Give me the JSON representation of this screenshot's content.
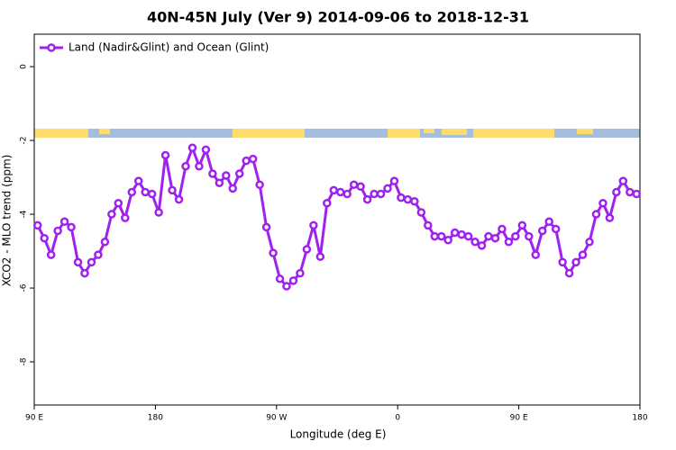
{
  "chart_data": {
    "type": "line",
    "title": "40N-45N July (Ver 9)   2014-09-06 to 2018-12-31",
    "x_label": "Longitude (deg E)",
    "y_label": "XCO2 - MLO trend (ppm)",
    "x": [
      92.5,
      97.5,
      102.5,
      107.5,
      112.5,
      117.5,
      122.5,
      127.5,
      132.5,
      137.5,
      142.5,
      147.5,
      152.5,
      157.5,
      162.5,
      167.5,
      172.5,
      177.5,
      182.5,
      187.5,
      192.5,
      197.5,
      202.5,
      207.5,
      212.5,
      217.5,
      222.5,
      227.5,
      232.5,
      237.5,
      242.5,
      247.5,
      252.5,
      257.5,
      262.5,
      267.5,
      272.5,
      277.5,
      282.5,
      287.5,
      292.5,
      297.5,
      302.5,
      307.5,
      312.5,
      317.5,
      322.5,
      327.5,
      332.5,
      337.5,
      342.5,
      347.5,
      352.5,
      357.5,
      362.5,
      367.5,
      372.5,
      377.5,
      382.5,
      387.5,
      392.5,
      397.5,
      402.5,
      407.5,
      412.5,
      417.5,
      422.5,
      427.5,
      432.5,
      437.5,
      442.5,
      447.5,
      452.5,
      457.5,
      462.5,
      467.5,
      472.5,
      477.5,
      482.5,
      487.5,
      492.5,
      497.5,
      502.5,
      507.5,
      512.5,
      517.5,
      522.5,
      527.5,
      532.5,
      537.5
    ],
    "series": [
      {
        "name": "Land (Nadir&Glint) and Ocean (Glint)",
        "color": "#a020f0",
        "values": [
          -4.3,
          -4.65,
          -5.1,
          -4.45,
          -4.2,
          -4.35,
          -5.3,
          -5.6,
          -5.3,
          -5.1,
          -4.75,
          -4.0,
          -3.7,
          -4.1,
          -3.4,
          -3.1,
          -3.4,
          -3.45,
          -3.95,
          -2.4,
          -3.35,
          -3.6,
          -2.7,
          -2.2,
          -2.7,
          -2.25,
          -2.9,
          -3.15,
          -2.95,
          -3.3,
          -2.9,
          -2.55,
          -2.5,
          -3.2,
          -4.35,
          -5.05,
          -5.75,
          -5.95,
          -5.8,
          -5.6,
          -4.95,
          -4.3,
          -5.15,
          -3.7,
          -3.35,
          -3.4,
          -3.45,
          -3.2,
          -3.25,
          -3.6,
          -3.45,
          -3.45,
          -3.3,
          -3.1,
          -3.55,
          -3.6,
          -3.65,
          -3.95,
          -4.3,
          -4.6,
          -4.6,
          -4.7,
          -4.5,
          -4.55,
          -4.6,
          -4.75,
          -4.85,
          -4.6,
          -4.65,
          -4.4,
          -4.75,
          -4.6,
          -4.3,
          -4.6,
          -5.1,
          -4.45,
          -4.2,
          -4.4,
          -5.3,
          -5.6,
          -5.3,
          -5.1,
          -4.75,
          -4.0,
          -3.7,
          -4.1,
          -3.4,
          -3.1,
          -3.4,
          -3.45
        ]
      }
    ],
    "xlim": [
      90,
      540
    ],
    "xticks": [
      {
        "value": 90,
        "label": "90 E"
      },
      180,
      {
        "value": 270,
        "label": "90 W"
      },
      {
        "value": 360,
        "label": "0"
      },
      {
        "value": 450,
        "label": "90 E"
      },
      {
        "value": 540,
        "label": "180"
      }
    ],
    "ylim": [
      -9.17,
      0.88
    ],
    "yticks": [
      0,
      -2,
      -4,
      -6,
      -8
    ],
    "legend": "top-left"
  }
}
